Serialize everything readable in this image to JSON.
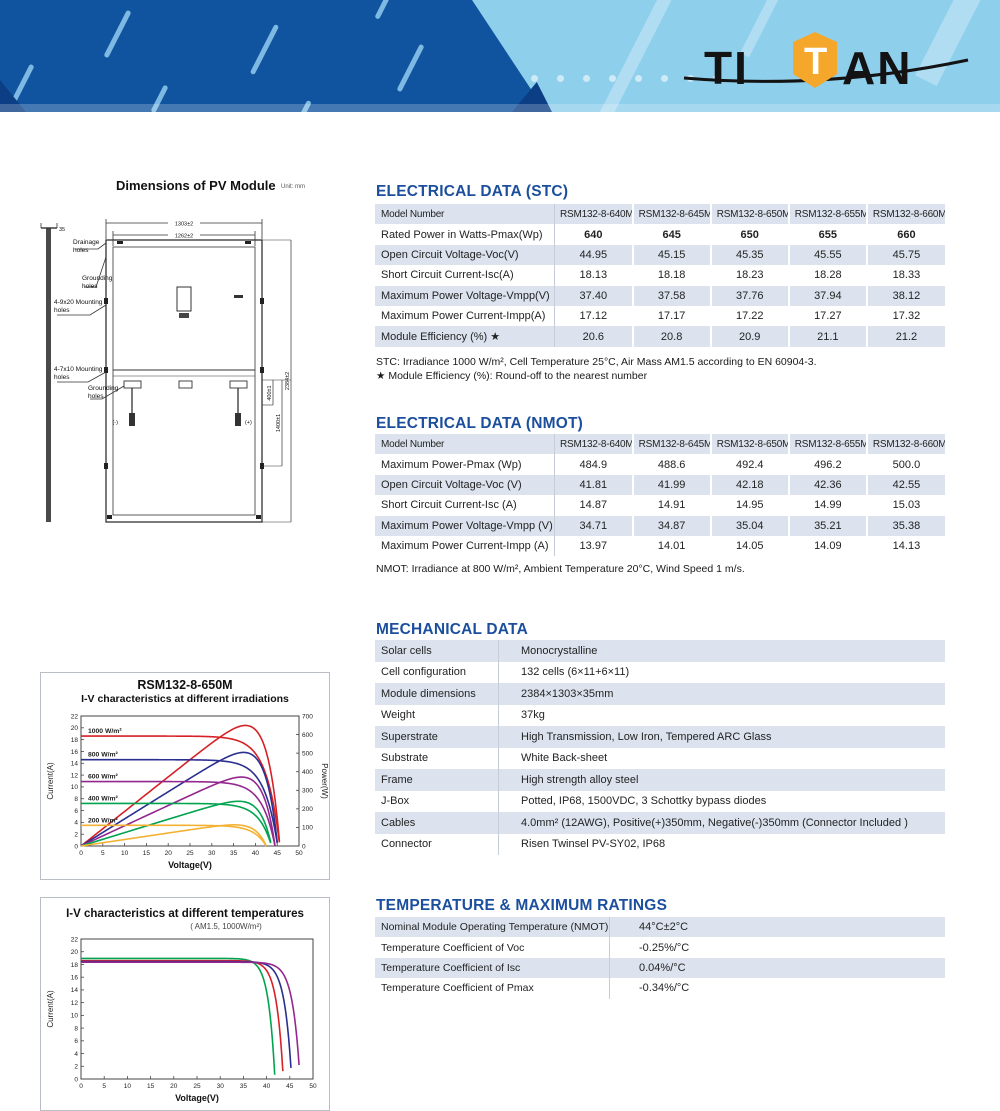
{
  "header": {
    "brand": "TITAN",
    "brand_left": "TI",
    "brand_mid": "T",
    "brand_right": "AN"
  },
  "diagram": {
    "title": "Dimensions of PV Module",
    "unit": "Unit: mm",
    "thickness": "35",
    "drainage": "Drainage holes",
    "grounding_top": "Grounding holes",
    "mounting_top": "4-9x20 Mounting holes",
    "mounting_bottom": "4-7x10 Mounting holes",
    "grounding_bottom": "Grounding holes",
    "dim_outer_width": "1303±2",
    "dim_inner_width": "1262±2",
    "dim_h400": "400±1",
    "dim_h1400": "1400±1",
    "dim_height": "2384±2",
    "neg": "(-)",
    "pos": "(+)"
  },
  "stc": {
    "title": "ELECTRICAL DATA (STC)",
    "table": {
      "columns": [
        "Model Number",
        "RSM132-8-640M",
        "RSM132-8-645M",
        "RSM132-8-650M",
        "RSM132-8-655M",
        "RSM132-8-660M"
      ],
      "rows": [
        {
          "cells": [
            "Rated Power in Watts-Pmax(Wp)",
            "640",
            "645",
            "650",
            "655",
            "660"
          ],
          "bold": true
        },
        {
          "cells": [
            "Open Circuit Voltage-Voc(V)",
            "44.95",
            "45.15",
            "45.35",
            "45.55",
            "45.75"
          ]
        },
        {
          "cells": [
            "Short Circuit Current-Isc(A)",
            "18.13",
            "18.18",
            "18.23",
            "18.28",
            "18.33"
          ]
        },
        {
          "cells": [
            "Maximum Power Voltage-Vmpp(V)",
            "37.40",
            "37.58",
            "37.76",
            "37.94",
            "38.12"
          ]
        },
        {
          "cells": [
            "Maximum Power Current-Impp(A)",
            "17.12",
            "17.17",
            "17.22",
            "17.27",
            "17.32"
          ]
        },
        {
          "cells": [
            "Module Efficiency (%) ★",
            "20.6",
            "20.8",
            "20.9",
            "21.1",
            "21.2"
          ]
        }
      ]
    },
    "footnote1": "STC: Irradiance 1000 W/m², Cell Temperature 25°C, Air Mass AM1.5 according to EN 60904-3.",
    "footnote2": "★ Module Efficiency (%): Round-off to the nearest number"
  },
  "nmot": {
    "title": "ELECTRICAL DATA (NMOT)",
    "table": {
      "columns": [
        "Model Number",
        "RSM132-8-640M",
        "RSM132-8-645M",
        "RSM132-8-650M",
        "RSM132-8-655M",
        "RSM132-8-660M"
      ],
      "rows": [
        {
          "cells": [
            "Maximum Power-Pmax (Wp)",
            "484.9",
            "488.6",
            "492.4",
            "496.2",
            "500.0"
          ]
        },
        {
          "cells": [
            "Open Circuit Voltage-Voc (V)",
            "41.81",
            "41.99",
            "42.18",
            "42.36",
            "42.55"
          ]
        },
        {
          "cells": [
            "Short Circuit Current-Isc (A)",
            "14.87",
            "14.91",
            "14.95",
            "14.99",
            "15.03"
          ]
        },
        {
          "cells": [
            "Maximum Power Voltage-Vmpp (V)",
            "34.71",
            "34.87",
            "35.04",
            "35.21",
            "35.38"
          ]
        },
        {
          "cells": [
            "Maximum Power Current-Impp (A)",
            "13.97",
            "14.01",
            "14.05",
            "14.09",
            "14.13"
          ]
        }
      ]
    },
    "footnote1": "NMOT: Irradiance at 800 W/m², Ambient Temperature 20°C, Wind Speed 1 m/s."
  },
  "mechanical": {
    "title": "MECHANICAL DATA",
    "table": {
      "rows": [
        {
          "cells": [
            "Solar cells",
            "Monocrystalline"
          ]
        },
        {
          "cells": [
            "Cell configuration",
            "132 cells (6×11+6×11)"
          ]
        },
        {
          "cells": [
            "Module dimensions",
            "2384×1303×35mm"
          ]
        },
        {
          "cells": [
            "Weight",
            "37kg"
          ]
        },
        {
          "cells": [
            "Superstrate",
            "High Transmission, Low Iron, Tempered ARC Glass"
          ]
        },
        {
          "cells": [
            "Substrate",
            "White Back-sheet"
          ]
        },
        {
          "cells": [
            "Frame",
            "High strength alloy steel"
          ]
        },
        {
          "cells": [
            "J-Box",
            "Potted, IP68, 1500VDC, 3 Schottky bypass diodes"
          ]
        },
        {
          "cells": [
            "Cables",
            "4.0mm² (12AWG), Positive(+)350mm, Negative(-)350mm (Connector Included )"
          ]
        },
        {
          "cells": [
            "Connector",
            "Risen Twinsel PV-SY02, IP68"
          ]
        }
      ]
    }
  },
  "temperature": {
    "title": "TEMPERATURE & MAXIMUM RATINGS",
    "table": {
      "rows": [
        {
          "cells": [
            "Nominal Module Operating Temperature (NMOT)",
            "44°C±2°C"
          ]
        },
        {
          "cells": [
            "Temperature Coefficient of Voc",
            "-0.25%/°C"
          ]
        },
        {
          "cells": [
            "Temperature Coefficient of Isc",
            "0.04%/°C"
          ]
        },
        {
          "cells": [
            "Temperature Coefficient of Pmax",
            "-0.34%/°C"
          ]
        }
      ]
    }
  },
  "chart_data": [
    {
      "type": "line",
      "title": "RSM132-8-650M",
      "subtitle": "I-V characteristics at different irradiations",
      "xlabel": "Voltage(V)",
      "ylabel": "Current(A)",
      "y2label": "Power(W)",
      "xlim": [
        0,
        50
      ],
      "xtick": 5,
      "ylim": [
        0,
        22
      ],
      "ytick": 2,
      "y2lim": [
        0,
        700
      ],
      "y2tick": 100,
      "grid": false,
      "legend_position": "inline-left",
      "knee": 15,
      "curves": [
        "I-V",
        "P-V"
      ],
      "series": [
        {
          "name": "1000 W/m²",
          "color": "#d62127",
          "isc": 18.6,
          "voc": 45.6,
          "pmax": 650
        },
        {
          "name": "800 W/m²",
          "color": "#2b2f90",
          "isc": 14.6,
          "voc": 45.1,
          "pmax": 520
        },
        {
          "name": "600 W/m²",
          "color": "#94278f",
          "isc": 10.9,
          "voc": 44.5,
          "pmax": 395
        },
        {
          "name": "400 W/m²",
          "color": "#00a44f",
          "isc": 7.2,
          "voc": 43.7,
          "pmax": 262
        },
        {
          "name": "200 W/m²",
          "color": "#f3b233",
          "isc": 3.5,
          "voc": 42.5,
          "pmax": 122
        }
      ]
    },
    {
      "type": "line",
      "title": "I-V characteristics at different temperatures",
      "subtitle": "( AM1.5,  1000W/m²)",
      "xlabel": "Voltage(V)",
      "ylabel": "Current(A)",
      "xlim": [
        0,
        50
      ],
      "xtick": 5,
      "ylim": [
        0,
        22
      ],
      "ytick": 2,
      "grid": false,
      "knee": 30,
      "curves": [
        "I-V"
      ],
      "series": [
        {
          "name": "",
          "color": "#00a44f",
          "isc": 18.95,
          "voc": 41.8
        },
        {
          "name": "",
          "color": "#d62127",
          "isc": 18.6,
          "voc": 43.6
        },
        {
          "name": "",
          "color": "#2b2f90",
          "isc": 18.45,
          "voc": 45.4
        },
        {
          "name": "",
          "color": "#94278f",
          "isc": 18.35,
          "voc": 47.2
        }
      ]
    }
  ]
}
